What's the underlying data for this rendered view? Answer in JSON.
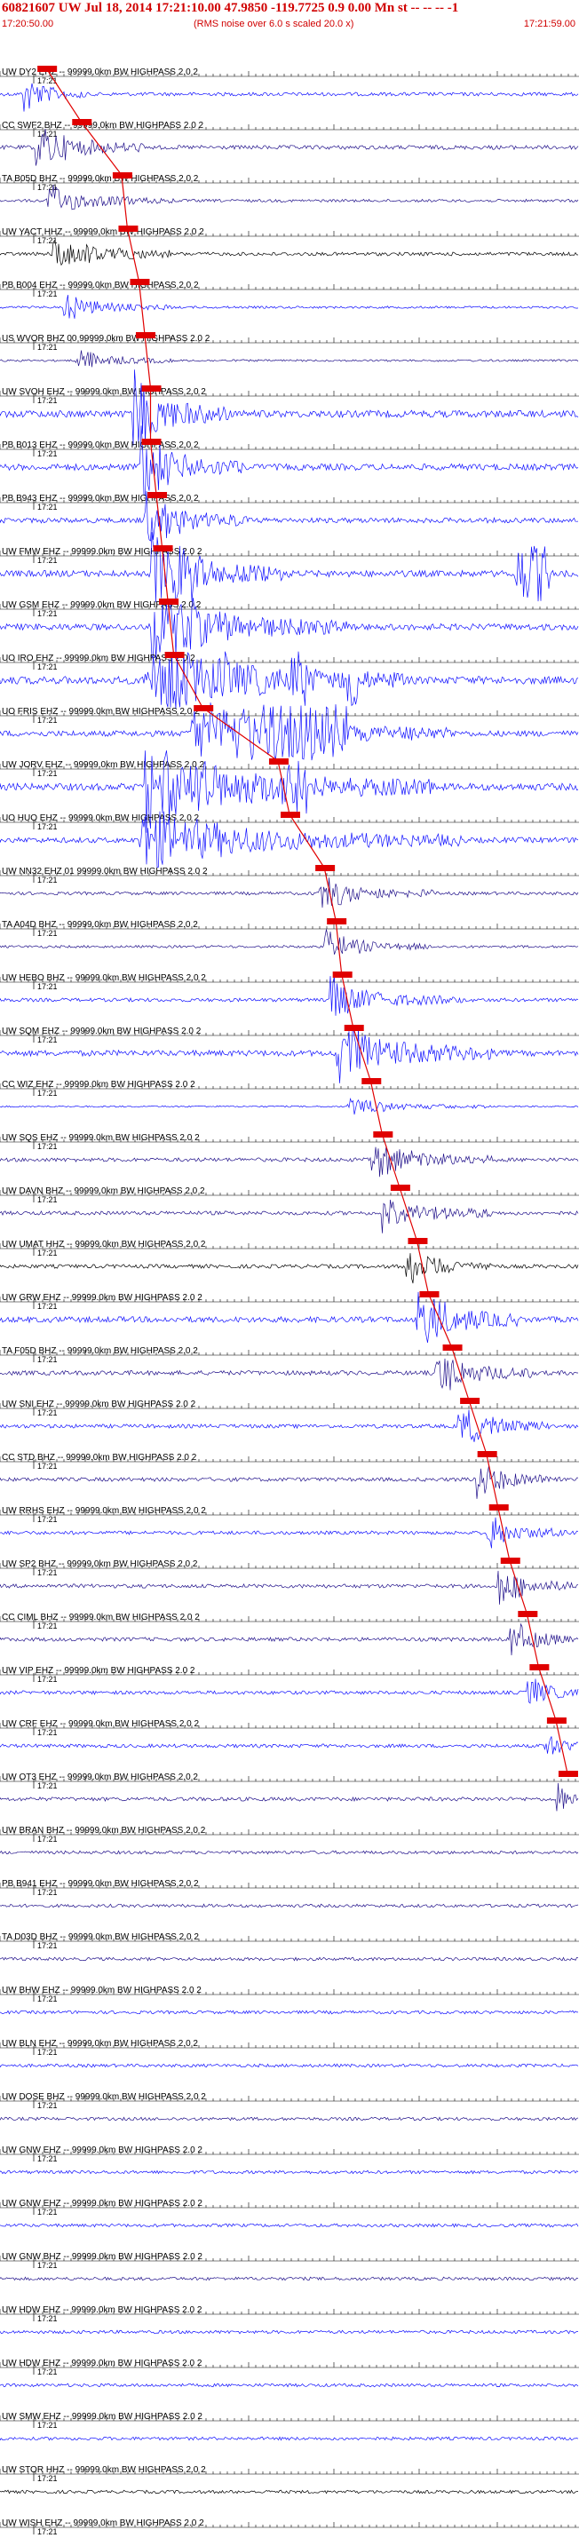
{
  "header": {
    "title": "60821607 UW Jul 18, 2014 17:21:10.00   47.9850 -119.7725  0.9 0.00 Mn st -- -- -- -1",
    "start_time": "17:20:50.00",
    "note": "(RMS noise over 6.0 s scaled 20.0 x)",
    "end_time": "17:21:59.00"
  },
  "minute_label": "17:21",
  "colors": {
    "blue": "#1010ff",
    "navy": "#20108a",
    "black": "#000000",
    "pick": "#e00000"
  },
  "traces": [
    {
      "label": "UW DY2 EHZ -- 99999.0km BW  HIGHPASS  2.0  2",
      "color": "blue",
      "amp": 0.28,
      "burst": [
        0.04,
        0.15
      ],
      "pick": 0.08
    },
    {
      "label": "CC SWF2 BHZ -- 99999.0km BW  HIGHPASS  2.0  2",
      "color": "navy",
      "amp": 0.32,
      "burst": [
        0.06,
        0.25
      ],
      "pick": 0.14
    },
    {
      "label": "TA B05D BHZ -- 99999.0km BW  HIGHPASS  2.0  2",
      "color": "navy",
      "amp": 0.22,
      "burst": [
        0.08,
        0.3
      ],
      "pick": 0.21
    },
    {
      "label": "UW YACT HHZ -- 99999.0km BW  HIGHPASS  2.0  2",
      "color": "black",
      "amp": 0.28,
      "burst": [
        0.09,
        0.3
      ],
      "pick": 0.22
    },
    {
      "label": "PB B004 EHZ -- 99999.0km BW  HIGHPASS  2.0  2",
      "color": "blue",
      "amp": 0.18,
      "burst": [
        0.11,
        0.3
      ],
      "pick": 0.24
    },
    {
      "label": "US WVOR BHZ 00 99999.0km BW  HIGHPASS  2.0  2",
      "color": "navy",
      "amp": 0.16,
      "burst": [
        0.13,
        0.3
      ],
      "pick": 0.25
    },
    {
      "label": "UW SVOH EHZ -- 99999.0km BW  HIGHPASS  2.0  2",
      "color": "blue",
      "amp": 0.55,
      "burst": [
        0.23,
        0.4
      ],
      "pick": 0.26
    },
    {
      "label": "PB B013 EHZ -- 99999.0km BW  HIGHPASS  2.0  2",
      "color": "blue",
      "amp": 0.5,
      "burst": [
        0.24,
        0.42
      ],
      "pick": 0.26
    },
    {
      "label": "PB B943 EHZ -- 99999.0km BW  HIGHPASS  2.0  2",
      "color": "blue",
      "amp": 0.4,
      "burst": [
        0.25,
        0.43
      ],
      "pick": 0.27
    },
    {
      "label": "UW FMW EHZ -- 99999.0km BW  HIGHPASS  2.0  2",
      "color": "blue",
      "amp": 0.5,
      "burst": [
        0.26,
        0.5
      ],
      "pick": 0.28,
      "sat": [
        [
          0.28,
          0.35
        ],
        [
          0.89,
          0.95
        ]
      ]
    },
    {
      "label": "UW GSM EHZ -- 99999.0km BW  HIGHPASS  2.0  2",
      "color": "blue",
      "amp": 0.5,
      "burst": [
        0.26,
        0.6
      ],
      "pick": 0.29,
      "sat": [
        [
          0.29,
          0.34
        ]
      ]
    },
    {
      "label": "UO IRO EHZ -- 99999.0km BW  HIGHPASS  2.0  2",
      "color": "blue",
      "amp": 0.6,
      "burst": [
        0.25,
        0.7
      ],
      "pick": 0.3,
      "sat": [
        [
          0.25,
          0.32
        ],
        [
          0.38,
          0.4
        ],
        [
          0.5,
          0.53
        ],
        [
          0.6,
          0.62
        ]
      ]
    },
    {
      "label": "UO FRIS EHZ -- 99999.0km BW  HIGHPASS  2.0  2",
      "color": "blue",
      "amp": 0.45,
      "burst": [
        0.33,
        0.78
      ],
      "pick": 0.35,
      "sat": [
        [
          0.38,
          0.6
        ]
      ]
    },
    {
      "label": "UW JORV EHZ -- 99999.0km BW  HIGHPASS  2.0  2",
      "color": "blue",
      "amp": 0.55,
      "burst": [
        0.25,
        0.75
      ],
      "pick": 0.48,
      "sat": [
        [
          0.3,
          0.36
        ],
        [
          0.48,
          0.53
        ]
      ]
    },
    {
      "label": "UO HUO EHZ -- 99999.0km BW  HIGHPASS  2.0  2",
      "color": "blue",
      "amp": 0.42,
      "burst": [
        0.24,
        0.8
      ],
      "pick": 0.5
    },
    {
      "label": "UW NN32 EHZ 01 99999.0km BW  HIGHPASS  2.0  2",
      "color": "navy",
      "amp": 0.25,
      "burst": [
        0.55,
        0.75
      ],
      "pick": 0.56
    },
    {
      "label": "TA A04D BHZ -- 99999.0km BW  HIGHPASS  2.0  2",
      "color": "navy",
      "amp": 0.2,
      "burst": [
        0.56,
        0.75
      ],
      "pick": 0.58
    },
    {
      "label": "UW HEBO BHZ -- 99999.0km BW  HIGHPASS  2.0  2",
      "color": "blue",
      "amp": 0.28,
      "burst": [
        0.57,
        0.8
      ],
      "pick": 0.59
    },
    {
      "label": "UW SQM EHZ -- 99999.0km BW  HIGHPASS  2.0  2",
      "color": "blue",
      "amp": 0.45,
      "burst": [
        0.58,
        0.85
      ],
      "pick": 0.61
    },
    {
      "label": "CC WIZ EHZ -- 99999.0km BW  HIGHPASS  2.0  2",
      "color": "blue",
      "amp": 0.12,
      "burst": [
        0.6,
        0.85
      ],
      "pick": 0.64
    },
    {
      "label": "UW SQS EHZ -- 99999.0km BW  HIGHPASS  2.0  2",
      "color": "navy",
      "amp": 0.3,
      "burst": [
        0.64,
        0.85
      ],
      "pick": 0.66
    },
    {
      "label": "UW DAVN BHZ -- 99999.0km BW  HIGHPASS  2.0  2",
      "color": "navy",
      "amp": 0.3,
      "burst": [
        0.66,
        0.85
      ],
      "pick": 0.69
    },
    {
      "label": "UW UMAT HHZ -- 99999.0km BW  HIGHPASS  2.0  2",
      "color": "black",
      "amp": 0.3,
      "burst": [
        0.7,
        0.85
      ],
      "pick": 0.72
    },
    {
      "label": "UW GRW EHZ -- 99999.0km BW  HIGHPASS  2.0  2",
      "color": "blue",
      "amp": 0.45,
      "burst": [
        0.72,
        0.9
      ],
      "pick": 0.74
    },
    {
      "label": "TA F05D BHZ -- 99999.0km BW  HIGHPASS  2.0  2",
      "color": "navy",
      "amp": 0.35,
      "burst": [
        0.75,
        0.92
      ],
      "pick": 0.78
    },
    {
      "label": "UW SNI EHZ -- 99999.0km BW  HIGHPASS  2.0  2",
      "color": "blue",
      "amp": 0.3,
      "burst": [
        0.79,
        0.95
      ],
      "pick": 0.81
    },
    {
      "label": "CC STD BHZ -- 99999.0km BW  HIGHPASS  2.0  2",
      "color": "navy",
      "amp": 0.3,
      "burst": [
        0.82,
        0.97
      ],
      "pick": 0.84
    },
    {
      "label": "UW RRHS EHZ -- 99999.0km BW  HIGHPASS  2.0  2",
      "color": "blue",
      "amp": 0.28,
      "burst": [
        0.84,
        0.98
      ],
      "pick": 0.86
    },
    {
      "label": "UW SP2 BHZ -- 99999.0km BW  HIGHPASS  2.0  2",
      "color": "navy",
      "amp": 0.3,
      "burst": [
        0.86,
        0.99
      ],
      "pick": 0.88
    },
    {
      "label": "CC CIML BHZ -- 99999.0km BW  HIGHPASS  2.0  2",
      "color": "navy",
      "amp": 0.3,
      "burst": [
        0.88,
        0.99
      ],
      "pick": 0.91
    },
    {
      "label": "UW VIP EHZ -- 99999.0km BW  HIGHPASS  2.0  2",
      "color": "blue",
      "amp": 0.28,
      "burst": [
        0.91,
        1.0
      ],
      "pick": 0.93
    },
    {
      "label": "UW CRF EHZ -- 99999.0km BW  HIGHPASS  2.0  2",
      "color": "blue",
      "amp": 0.28,
      "burst": [
        0.94,
        1.0
      ],
      "pick": 0.96
    },
    {
      "label": "UW OT3 EHZ -- 99999.0km BW  HIGHPASS  2.0  2",
      "color": "navy",
      "amp": 0.3,
      "burst": [
        0.96,
        1.0
      ],
      "pick": 0.98
    },
    {
      "label": "UW BRAN BHZ -- 99999.0km BW  HIGHPASS  2.0  2",
      "color": "navy",
      "amp": 0.25
    },
    {
      "label": "PB B941 EHZ -- 99999.0km BW  HIGHPASS  2.0  2",
      "color": "navy",
      "amp": 0.25
    },
    {
      "label": "TA D03D BHZ -- 99999.0km BW  HIGHPASS  2.0  2",
      "color": "navy",
      "amp": 0.25
    },
    {
      "label": "UW BHW EHZ -- 99999.0km BW  HIGHPASS  2.0  2",
      "color": "blue",
      "amp": 0.25
    },
    {
      "label": "UW BLN EHZ -- 99999.0km BW  HIGHPASS  2.0  2",
      "color": "blue",
      "amp": 0.25
    },
    {
      "label": "UW DOSE BHZ -- 99999.0km BW  HIGHPASS  2.0  2",
      "color": "navy",
      "amp": 0.25
    },
    {
      "label": "UW GNW EHZ -- 99999.0km BW  HIGHPASS  2.0  2",
      "color": "blue",
      "amp": 0.25
    },
    {
      "label": "UW GNW EHZ -- 99999.0km BW  HIGHPASS  2.0  2",
      "color": "blue",
      "amp": 0.25
    },
    {
      "label": "UW GNW BHZ -- 99999.0km BW  HIGHPASS  2.0  2",
      "color": "navy",
      "amp": 0.25
    },
    {
      "label": "UW HDW EHZ -- 99999.0km BW  HIGHPASS  2.0  2",
      "color": "blue",
      "amp": 0.25
    },
    {
      "label": "UW HDW EHZ -- 99999.0km BW  HIGHPASS  2.0  2",
      "color": "blue",
      "amp": 0.25
    },
    {
      "label": "UW SMW EHZ -- 99999.0km BW  HIGHPASS  2.0  2",
      "color": "blue",
      "amp": 0.25
    },
    {
      "label": "UW STOR HHZ -- 99999.0km BW  HIGHPASS  2.0  2",
      "color": "black",
      "amp": 0.25
    },
    {
      "label": "UW WISH EHZ -- 99999.0km BW  HIGHPASS  2.0  2",
      "color": "blue",
      "amp": 0.25
    }
  ]
}
